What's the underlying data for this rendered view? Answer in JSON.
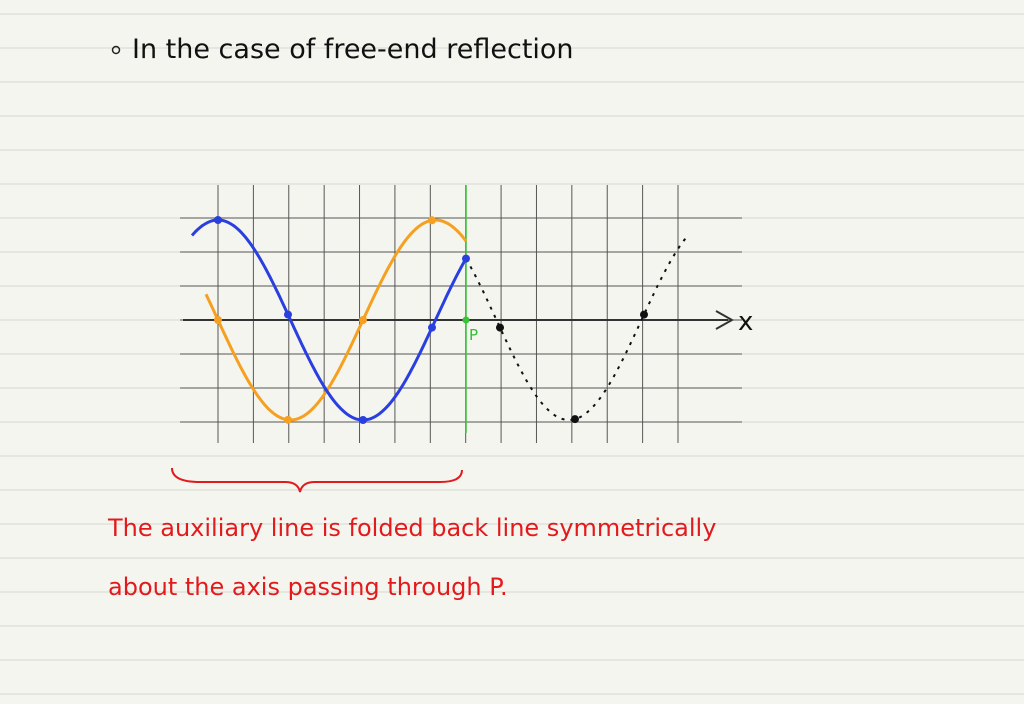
{
  "header": {
    "title": "In the case of free-end reflection"
  },
  "diagram": {
    "axis_label": "x",
    "point_label": "P"
  },
  "note": {
    "lines": [
      "The auxiliary line is folded back line symmetrically",
      "about the axis passing through P."
    ]
  }
}
